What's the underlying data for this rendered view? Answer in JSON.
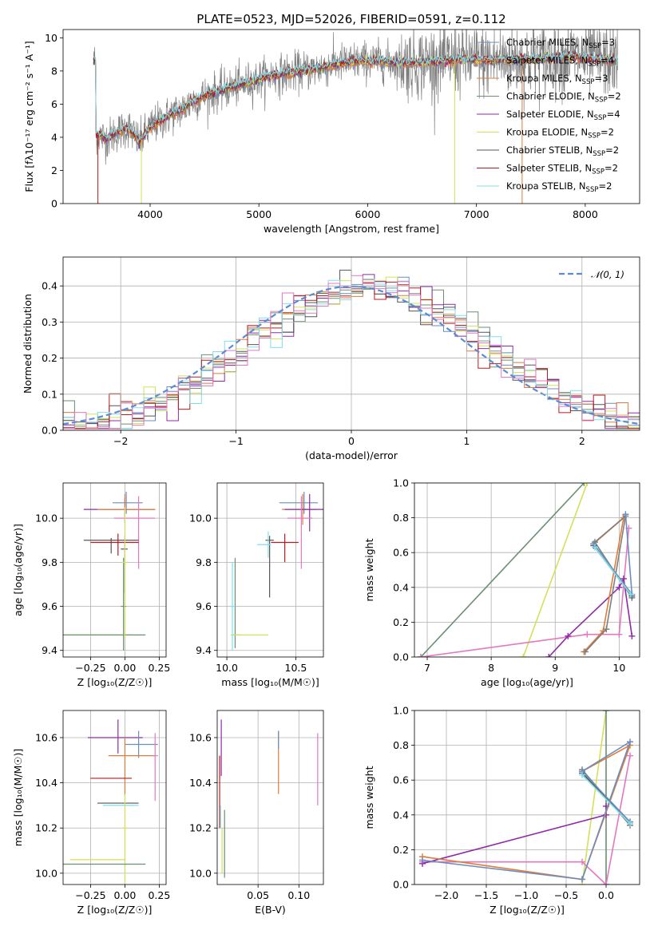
{
  "colors": [
    "#6c8ebf",
    "#e07b39",
    "#6b8f71",
    "#8f2aa7",
    "#d4e157",
    "#555555",
    "#b71c1c",
    "#80deea",
    "#e377c2",
    "#7f7f7f"
  ],
  "chart_data": [
    {
      "id": "spectrum",
      "type": "line",
      "title": "PLATE=0523, MJD=52026, FIBERID=0591, z=0.112",
      "xlabel": "wavelength [Angstrom, rest frame]",
      "ylabel": "Flux [fλ10⁻¹⁷ erg cm⁻² s⁻¹ A⁻¹]",
      "xlim": [
        3200,
        8500
      ],
      "ylim": [
        0,
        10.5
      ],
      "xticks": [
        4000,
        5000,
        6000,
        7000,
        8000
      ],
      "yticks": [
        0,
        2,
        4,
        6,
        8,
        10
      ],
      "observed_color": "#7f7f7f",
      "spectrum_shape": {
        "x": [
          3500,
          3600,
          3700,
          3800,
          3900,
          4000,
          4100,
          4200,
          4300,
          4400,
          4500,
          4700,
          4900,
          5100,
          5300,
          5500,
          5700,
          5900,
          6100,
          6300,
          6500,
          6700,
          6900,
          7100,
          7300,
          7500,
          7700,
          7900,
          8100,
          8300
        ],
        "y": [
          4.2,
          3.9,
          4.3,
          4.6,
          3.7,
          4.6,
          5.0,
          5.4,
          5.7,
          6.2,
          6.5,
          6.9,
          7.3,
          7.7,
          7.9,
          8.1,
          8.4,
          8.6,
          8.6,
          8.5,
          8.5,
          8.6,
          8.7,
          8.6,
          8.7,
          8.7,
          8.8,
          8.9,
          8.7,
          8.6
        ]
      },
      "legend": [
        {
          "name": "Chabrier MILES, N_SSP=3",
          "label": "Chabrier MILES, N",
          "sub": "SSP",
          "suffix": "=3",
          "color": "#6c8ebf"
        },
        {
          "name": "Salpeter MILES, N_SSP=4",
          "label": "Salpeter MILES, N",
          "sub": "SSP",
          "suffix": "=4",
          "color": "#e07b39"
        },
        {
          "name": "Kroupa MILES, N_SSP=3",
          "label": "Kroupa MILES, N",
          "sub": "SSP",
          "suffix": "=3",
          "color": "#e07b39"
        },
        {
          "name": "Chabrier ELODIE, N_SSP=2",
          "label": "Chabrier ELODIE, N",
          "sub": "SSP",
          "suffix": "=2",
          "color": "#6b8f71"
        },
        {
          "name": "Salpeter ELODIE, N_SSP=4",
          "label": "Salpeter ELODIE, N",
          "sub": "SSP",
          "suffix": "=4",
          "color": "#8f2aa7"
        },
        {
          "name": "Kroupa ELODIE, N_SSP=2",
          "label": "Kroupa ELODIE, N",
          "sub": "SSP",
          "suffix": "=2",
          "color": "#d4e157"
        },
        {
          "name": "Chabrier STELIB, N_SSP=2",
          "label": "Chabrier STELIB, N",
          "sub": "SSP",
          "suffix": "=2",
          "color": "#555555"
        },
        {
          "name": "Salpeter STELIB, N_SSP=2",
          "label": "Salpeter STELIB, N",
          "sub": "SSP",
          "suffix": "=2",
          "color": "#b71c1c"
        },
        {
          "name": "Kroupa STELIB, N_SSP=2",
          "label": "Kroupa STELIB, N",
          "sub": "SSP",
          "suffix": "=2",
          "color": "#80deea"
        }
      ]
    },
    {
      "id": "residuals",
      "type": "histogram",
      "xlabel": "(data-model)/error",
      "ylabel": "Normed distribution",
      "xlim": [
        -2.5,
        2.5
      ],
      "ylim": [
        0,
        0.48
      ],
      "xticks": [
        -2,
        -1,
        0,
        1,
        2
      ],
      "yticks": [
        0.0,
        0.1,
        0.2,
        0.3,
        0.4
      ],
      "bin_width": 0.1,
      "legend_label": "𝒩(0, 1)",
      "gaussian_color": "#5b8bd6"
    },
    {
      "id": "age_vs_Z",
      "type": "errorbar",
      "xlabel": "Z [log₁₀(Z/Z☉)]",
      "ylabel": "age  [log₁₀(age/yr)]",
      "xlim": [
        -0.45,
        0.3
      ],
      "ylim": [
        9.37,
        10.16
      ],
      "xticks": [
        -0.25,
        0.0,
        0.25
      ],
      "yticks": [
        9.4,
        9.6,
        9.8,
        10.0
      ],
      "points": [
        {
          "x": 0.01,
          "y": 10.07,
          "xerr": [
            0.1,
            0.12
          ],
          "yerr": [
            0.05,
            0.05
          ],
          "color": "#6c8ebf"
        },
        {
          "x": 0.0,
          "y": 10.04,
          "xerr": [
            0.3,
            0.22
          ],
          "yerr": [
            0.06,
            0.05
          ],
          "color": "#8f2aa7"
        },
        {
          "x": 0.0,
          "y": 10.04,
          "xerr": [
            0.2,
            0.22
          ],
          "yerr": [
            0.04,
            0.07
          ],
          "color": "#e07b39"
        },
        {
          "x": 0.1,
          "y": 10.0,
          "xerr": [
            0.18,
            0.12
          ],
          "yerr": [
            0.23,
            0.1
          ],
          "color": "#e377c2"
        },
        {
          "x": -0.1,
          "y": 9.9,
          "xerr": [
            0.2,
            0.2
          ],
          "yerr": [
            0.06,
            0.01
          ],
          "color": "#555555"
        },
        {
          "x": -0.05,
          "y": 9.89,
          "xerr": [
            0.2,
            0.15
          ],
          "yerr": [
            0.06,
            0.04
          ],
          "color": "#b71c1c"
        },
        {
          "x": 0.0,
          "y": 9.86,
          "xerr": [
            0.03,
            0.02
          ],
          "yerr": [
            0.2,
            0.06
          ],
          "color": "#555555"
        },
        {
          "x": -0.01,
          "y": 9.6,
          "xerr": [
            0.02,
            0.02
          ],
          "yerr": [
            0.2,
            0.22
          ],
          "color": "#6b8f71"
        },
        {
          "x": -0.2,
          "y": 9.47,
          "xerr": [
            0.24,
            0.24
          ],
          "yerr": [
            0.0,
            0.0
          ],
          "color": "#d4e157"
        },
        {
          "x": -0.1,
          "y": 9.47,
          "xerr": [
            0.35,
            0.25
          ],
          "yerr": [
            0.0,
            0.0
          ],
          "color": "#6b8f71"
        },
        {
          "x": 0.0,
          "y": 9.8,
          "xerr": [
            0.02,
            0.02
          ],
          "yerr": [
            0.35,
            0.25
          ],
          "color": "#d4e157"
        }
      ]
    },
    {
      "id": "age_vs_mass",
      "type": "errorbar",
      "xlabel": "mass [log₁₀(M/M☉)]",
      "ylabel": "",
      "xlim": [
        9.93,
        10.7
      ],
      "ylim": [
        9.37,
        10.16
      ],
      "xticks": [
        10.0,
        10.5
      ],
      "yticks": [
        9.4,
        9.6,
        9.8,
        10.0
      ],
      "points": [
        {
          "x": 10.56,
          "y": 10.07,
          "xerr": [
            0.18,
            0.1
          ],
          "yerr": [
            0.05,
            0.05
          ],
          "color": "#6c8ebf"
        },
        {
          "x": 10.55,
          "y": 10.04,
          "xerr": [
            0.15,
            0.1
          ],
          "yerr": [
            0.07,
            0.07
          ],
          "color": "#e07b39"
        },
        {
          "x": 10.6,
          "y": 10.04,
          "xerr": [
            0.18,
            0.1
          ],
          "yerr": [
            0.1,
            0.07
          ],
          "color": "#8f2aa7"
        },
        {
          "x": 10.54,
          "y": 10.0,
          "xerr": [
            0.1,
            0.08
          ],
          "yerr": [
            0.23,
            0.1
          ],
          "color": "#e377c2"
        },
        {
          "x": 10.31,
          "y": 9.9,
          "xerr": [
            0.03,
            0.03
          ],
          "yerr": [
            0.26,
            0.02
          ],
          "color": "#555555"
        },
        {
          "x": 10.42,
          "y": 9.89,
          "xerr": [
            0.1,
            0.1
          ],
          "yerr": [
            0.09,
            0.04
          ],
          "color": "#b71c1c"
        },
        {
          "x": 10.3,
          "y": 9.88,
          "xerr": [
            0.08,
            0.02
          ],
          "yerr": [
            0.06,
            0.06
          ],
          "color": "#80deea"
        },
        {
          "x": 10.06,
          "y": 9.47,
          "xerr": [
            0.02,
            0.03
          ],
          "yerr": [
            0.06,
            0.35
          ],
          "color": "#6b8f71"
        },
        {
          "x": 10.15,
          "y": 9.47,
          "xerr": [
            0.12,
            0.15
          ],
          "yerr": [
            0.0,
            0.0
          ],
          "color": "#d4e157"
        },
        {
          "x": 10.04,
          "y": 9.6,
          "xerr": [
            0.02,
            0.02
          ],
          "yerr": [
            0.2,
            0.2
          ],
          "color": "#80deea"
        }
      ]
    },
    {
      "id": "weight_vs_age",
      "type": "line",
      "xlabel": "age  [log₁₀(age/yr)]",
      "ylabel": "mass weight",
      "xlim": [
        6.8,
        10.32
      ],
      "ylim": [
        0,
        1
      ],
      "xticks": [
        7,
        8,
        9,
        10
      ],
      "yticks": [
        0.0,
        0.2,
        0.4,
        0.6,
        0.8,
        1.0
      ],
      "series": [
        {
          "color": "#6b8f71",
          "x": [
            6.9,
            9.45
          ],
          "y": [
            0.0,
            1.0
          ]
        },
        {
          "color": "#d4e157",
          "x": [
            8.5,
            9.5
          ],
          "y": [
            0.0,
            1.0
          ]
        },
        {
          "color": "#e377c2",
          "x": [
            6.9,
            9.5,
            10.0,
            10.15
          ],
          "y": [
            0.0,
            0.13,
            0.13,
            0.74
          ]
        },
        {
          "color": "#8f2aa7",
          "x": [
            8.9,
            9.2,
            10.0,
            10.07,
            10.2
          ],
          "y": [
            0.0,
            0.12,
            0.4,
            0.45,
            0.12
          ]
        },
        {
          "color": "#e07b39",
          "x": [
            9.45,
            9.75,
            10.07,
            9.6
          ],
          "y": [
            0.03,
            0.15,
            0.8,
            0.65
          ]
        },
        {
          "color": "#7f7f7f",
          "x": [
            9.47,
            9.8,
            10.1,
            9.62,
            10.2
          ],
          "y": [
            0.03,
            0.16,
            0.81,
            0.66,
            0.34
          ]
        },
        {
          "color": "#555555",
          "x": [
            9.6,
            10.2
          ],
          "y": [
            0.64,
            0.35
          ]
        },
        {
          "color": "#6c8ebf",
          "x": [
            9.6,
            10.2,
            10.1
          ],
          "y": [
            0.65,
            0.36,
            0.82
          ]
        },
        {
          "color": "#80deea",
          "x": [
            9.62,
            10.18
          ],
          "y": [
            0.63,
            0.36
          ]
        }
      ]
    },
    {
      "id": "mass_vs_Z",
      "type": "errorbar",
      "xlabel": "Z [log₁₀(Z/Z☉)]",
      "ylabel": "mass [log₁₀(M/M☉)]",
      "xlim": [
        -0.45,
        0.3
      ],
      "ylim": [
        9.95,
        10.72
      ],
      "xticks": [
        -0.25,
        0.0,
        0.25
      ],
      "yticks": [
        10.0,
        10.2,
        10.4,
        10.6
      ],
      "points": [
        {
          "x": -0.05,
          "y": 10.6,
          "xerr": [
            0.22,
            0.18
          ],
          "yerr": [
            0.07,
            0.08
          ],
          "color": "#8f2aa7"
        },
        {
          "x": 0.1,
          "y": 10.57,
          "xerr": [
            0.1,
            0.14
          ],
          "yerr": [
            0.06,
            0.06
          ],
          "color": "#6c8ebf"
        },
        {
          "x": 0.0,
          "y": 10.52,
          "xerr": [
            0.12,
            0.22
          ],
          "yerr": [
            0.18,
            0.08
          ],
          "color": "#e07b39"
        },
        {
          "x": 0.22,
          "y": 10.52,
          "xerr": [
            0.02,
            0.02
          ],
          "yerr": [
            0.2,
            0.1
          ],
          "color": "#e377c2"
        },
        {
          "x": -0.1,
          "y": 10.42,
          "xerr": [
            0.15,
            0.15
          ],
          "yerr": [
            0.0,
            0.0
          ],
          "color": "#b71c1c"
        },
        {
          "x": -0.05,
          "y": 10.31,
          "xerr": [
            0.15,
            0.15
          ],
          "yerr": [
            0.0,
            0.0
          ],
          "color": "#555555"
        },
        {
          "x": -0.03,
          "y": 10.3,
          "xerr": [
            0.13,
            0.13
          ],
          "yerr": [
            0.0,
            0.0
          ],
          "color": "#80deea"
        },
        {
          "x": 0.0,
          "y": 10.2,
          "xerr": [
            0.02,
            0.02
          ],
          "yerr": [
            0.25,
            0.15
          ],
          "color": "#d4e157"
        },
        {
          "x": -0.15,
          "y": 10.06,
          "xerr": [
            0.25,
            0.15
          ],
          "yerr": [
            0.0,
            0.0
          ],
          "color": "#d4e157"
        },
        {
          "x": -0.15,
          "y": 10.04,
          "xerr": [
            0.3,
            0.3
          ],
          "yerr": [
            0.0,
            0.0
          ],
          "color": "#6b8f71"
        }
      ]
    },
    {
      "id": "mass_vs_EBV",
      "type": "errorbar",
      "xlabel": "E(B-V)",
      "ylabel": "",
      "xlim": [
        0.0,
        0.13
      ],
      "ylim": [
        9.95,
        10.72
      ],
      "xticks": [
        0.05,
        0.1
      ],
      "yticks": [
        10.0,
        10.2,
        10.4,
        10.6
      ],
      "points": [
        {
          "x": 0.003,
          "y": 10.35,
          "xerr": [
            0.0,
            0.0
          ],
          "yerr": [
            0.15,
            0.17
          ],
          "color": "#b71c1c"
        },
        {
          "x": 0.005,
          "y": 10.55,
          "xerr": [
            0.0,
            0.0
          ],
          "yerr": [
            0.12,
            0.13
          ],
          "color": "#8f2aa7"
        },
        {
          "x": 0.004,
          "y": 10.25,
          "xerr": [
            0.0,
            0.0
          ],
          "yerr": [
            0.05,
            0.05
          ],
          "color": "#80deea"
        },
        {
          "x": 0.006,
          "y": 10.1,
          "xerr": [
            0.0,
            0.0
          ],
          "yerr": [
            0.1,
            0.1
          ],
          "color": "#d4e157"
        },
        {
          "x": 0.009,
          "y": 10.13,
          "xerr": [
            0.0,
            0.0
          ],
          "yerr": [
            0.15,
            0.15
          ],
          "color": "#6b8f71"
        },
        {
          "x": 0.075,
          "y": 10.5,
          "xerr": [
            0.0,
            0.0
          ],
          "yerr": [
            0.15,
            0.13
          ],
          "color": "#e07b39"
        },
        {
          "x": 0.075,
          "y": 10.55,
          "xerr": [
            0.0,
            0.0
          ],
          "yerr": [
            0.0,
            0.08
          ],
          "color": "#6c8ebf"
        },
        {
          "x": 0.123,
          "y": 10.46,
          "xerr": [
            0.0,
            0.0
          ],
          "yerr": [
            0.16,
            0.16
          ],
          "color": "#e377c2"
        }
      ]
    },
    {
      "id": "weight_vs_Z",
      "type": "line",
      "xlabel": "Z [log₁₀(Z/Z☉)]",
      "ylabel": "mass weight",
      "xlim": [
        -2.4,
        0.42
      ],
      "ylim": [
        0,
        1
      ],
      "xticks": [
        -2.0,
        -1.5,
        -1.0,
        -0.5,
        0.0
      ],
      "yticks": [
        0.0,
        0.2,
        0.4,
        0.6,
        0.8,
        1.0
      ],
      "series": [
        {
          "color": "#d4e157",
          "x": [
            -0.3,
            0.0
          ],
          "y": [
            0.0,
            1.0
          ]
        },
        {
          "color": "#6b8f71",
          "x": [
            0.0,
            0.0
          ],
          "y": [
            0.0,
            1.0
          ]
        },
        {
          "color": "#e377c2",
          "x": [
            -2.3,
            -0.3,
            0.0,
            0.3
          ],
          "y": [
            0.13,
            0.13,
            0.0,
            0.74
          ]
        },
        {
          "color": "#8f2aa7",
          "x": [
            -2.3,
            0.0,
            0.0
          ],
          "y": [
            0.12,
            0.4,
            0.45
          ]
        },
        {
          "color": "#e07b39",
          "x": [
            -2.3,
            -0.3,
            0.3,
            -0.3
          ],
          "y": [
            0.16,
            0.03,
            0.8,
            0.65
          ]
        },
        {
          "color": "#7f7f7f",
          "x": [
            -0.3,
            0.3
          ],
          "y": [
            0.66,
            0.34
          ]
        },
        {
          "color": "#555555",
          "x": [
            -0.3,
            0.3
          ],
          "y": [
            0.64,
            0.36
          ]
        },
        {
          "color": "#6c8ebf",
          "x": [
            -2.3,
            -0.3,
            0.3,
            -0.3,
            0.3
          ],
          "y": [
            0.14,
            0.03,
            0.82,
            0.65,
            0.36
          ]
        },
        {
          "color": "#80deea",
          "x": [
            -0.3,
            0.3
          ],
          "y": [
            0.63,
            0.35
          ]
        }
      ]
    }
  ]
}
